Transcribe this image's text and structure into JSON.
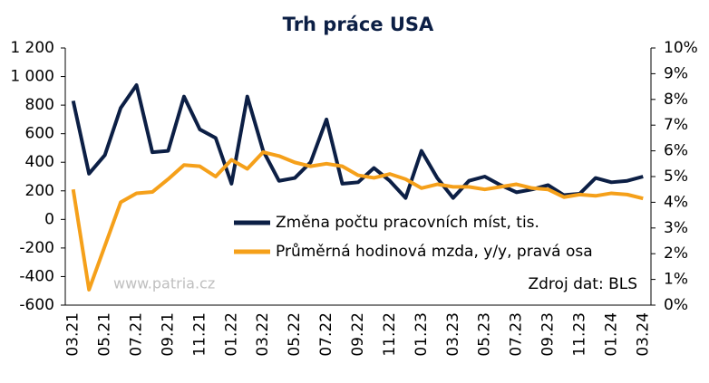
{
  "chart_data": {
    "type": "line",
    "title": "Trh práce USA",
    "annotations": [
      "www.patria.cz",
      "Zdroj dat: BLS"
    ],
    "categories": [
      "03.21",
      null,
      "05.21",
      null,
      "07.21",
      null,
      "09.21",
      null,
      "11.21",
      null,
      "01.22",
      null,
      "03.22",
      null,
      "05.22",
      null,
      "07.22",
      null,
      "09.22",
      null,
      "11.22",
      null,
      "01.23",
      null,
      "03.23",
      null,
      "05.23",
      null,
      "07.23",
      null,
      "09.23",
      null,
      "11.23",
      null,
      "01.24",
      null,
      "03.24"
    ],
    "series": [
      {
        "name": "Změna počtu pracovních míst, tis.",
        "color": "#0c1f45",
        "axis": "y",
        "values": [
          830,
          320,
          450,
          780,
          940,
          470,
          480,
          860,
          630,
          570,
          250,
          860,
          480,
          270,
          290,
          400,
          700,
          250,
          260,
          360,
          270,
          150,
          480,
          290,
          150,
          270,
          300,
          240,
          190,
          210,
          240,
          170,
          180,
          290,
          260,
          270,
          300
        ]
      },
      {
        "name": "Průměrná hodinová mzda, y/y, pravá osa",
        "color": "#f5a01a",
        "axis": "y2",
        "values": [
          4.5,
          0.6,
          2.3,
          4.0,
          4.35,
          4.4,
          4.9,
          5.45,
          5.4,
          5.0,
          5.65,
          5.3,
          5.95,
          5.8,
          5.55,
          5.4,
          5.5,
          5.4,
          5.05,
          4.95,
          5.1,
          4.9,
          4.55,
          4.7,
          4.6,
          4.6,
          4.5,
          4.6,
          4.7,
          4.55,
          4.5,
          4.2,
          4.3,
          4.25,
          4.35,
          4.3,
          4.15
        ]
      }
    ],
    "ylim": [
      -600,
      1200
    ],
    "yticks": [
      -600,
      -400,
      -200,
      0,
      200,
      400,
      600,
      800,
      {
        "value": 1000,
        "label": "1 000"
      },
      {
        "value": 1200,
        "label": "1 200"
      }
    ],
    "y2lim": [
      0,
      10
    ],
    "y2ticks": [
      {
        "value": 0,
        "label": "0%"
      },
      {
        "value": 1,
        "label": "1%"
      },
      {
        "value": 2,
        "label": "2%"
      },
      {
        "value": 3,
        "label": "3%"
      },
      {
        "value": 4,
        "label": "4%"
      },
      {
        "value": 5,
        "label": "5%"
      },
      {
        "value": 6,
        "label": "6%"
      },
      {
        "value": 7,
        "label": "7%"
      },
      {
        "value": 8,
        "label": "8%"
      },
      {
        "value": 9,
        "label": "9%"
      },
      {
        "value": 10,
        "label": "10%"
      }
    ],
    "legend": "center-right",
    "grid": false
  }
}
